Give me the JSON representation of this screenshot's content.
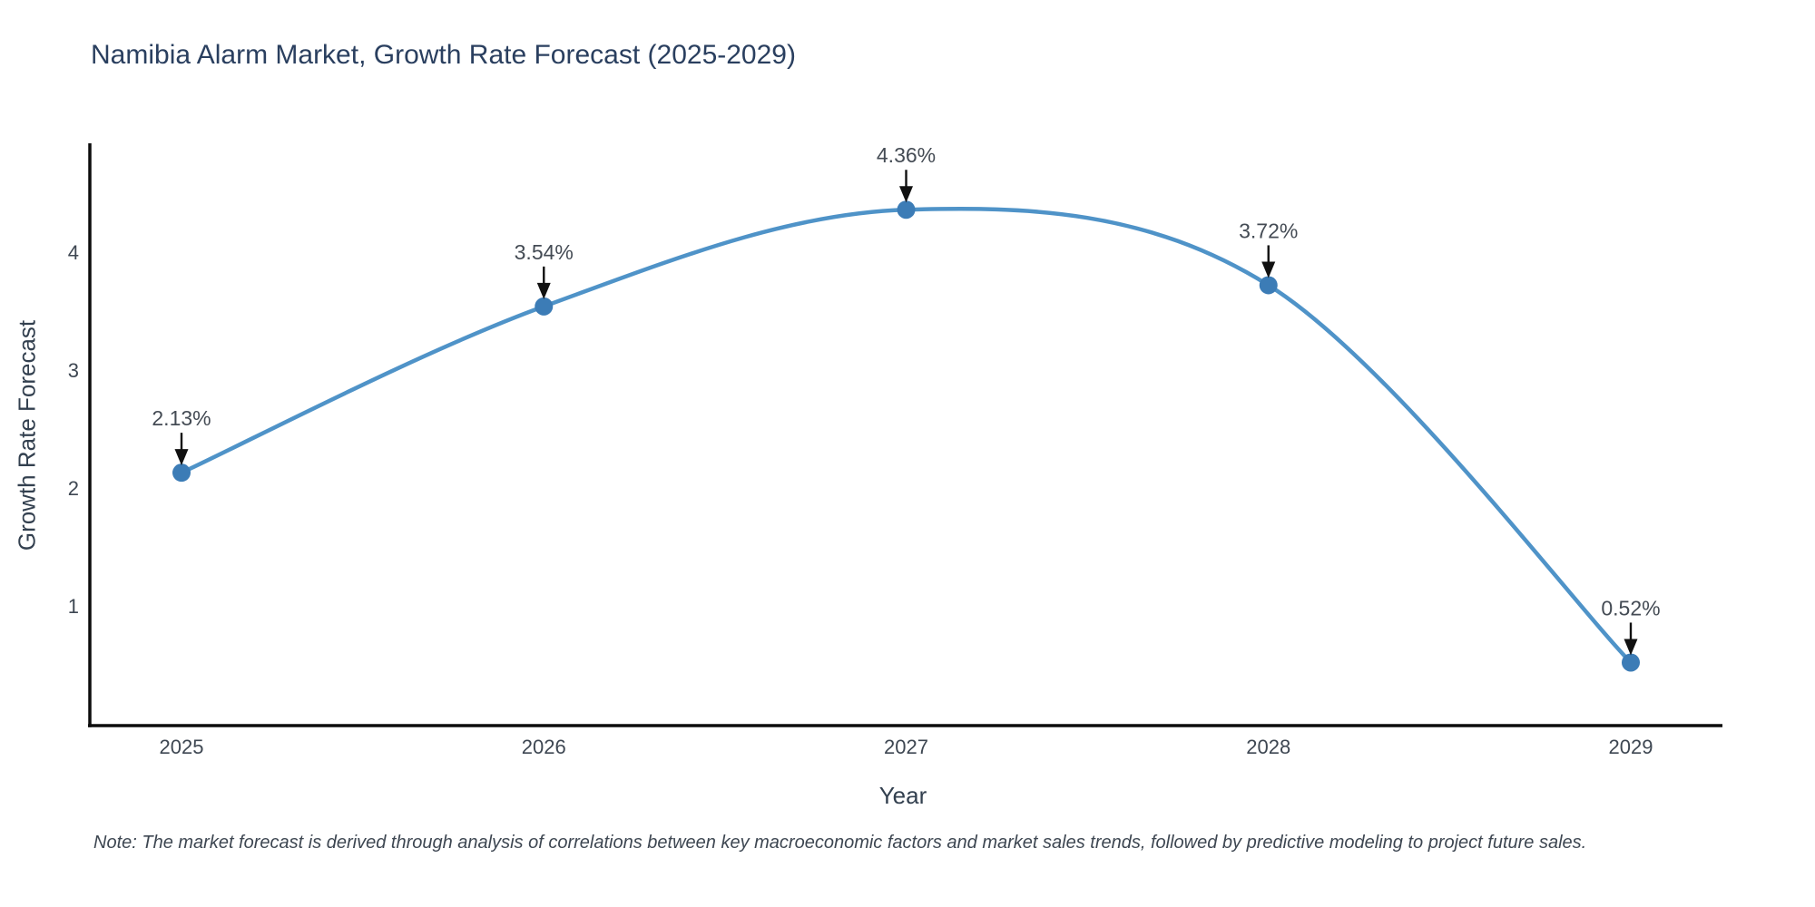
{
  "title": "Namibia Alarm Market, Growth Rate Forecast (2025-2029)",
  "note": "Note: The market forecast is derived through analysis of correlations between key macroeconomic factors and market sales trends, followed by predictive modeling to project future sales.",
  "chart_data": {
    "type": "line",
    "title": "Namibia Alarm Market, Growth Rate Forecast (2025-2029)",
    "xlabel": "Year",
    "ylabel": "Growth Rate Forecast",
    "x": [
      2025,
      2026,
      2027,
      2028,
      2029
    ],
    "values": [
      2.13,
      3.54,
      4.36,
      3.72,
      0.52
    ],
    "point_labels": [
      "2.13%",
      "3.54%",
      "4.36%",
      "3.72%",
      "0.52%"
    ],
    "xtick_labels": [
      "2025",
      "2026",
      "2027",
      "2028",
      "2029"
    ],
    "ytick_values": [
      1,
      2,
      3,
      4
    ],
    "ytick_labels": [
      "1",
      "2",
      "3",
      "4"
    ],
    "xlim": [
      2024.747,
      2029.253
    ],
    "ylim": [
      -0.015,
      4.908
    ],
    "line_shape": "spline",
    "grid": false,
    "legend": "none",
    "colors": {
      "line": "#4f93c8",
      "marker": "#3c7cb6",
      "arrow": "#111111",
      "axis": "#0d0d0d",
      "title_text": "#2a3f5f",
      "tick_text": "#3e4752"
    }
  }
}
